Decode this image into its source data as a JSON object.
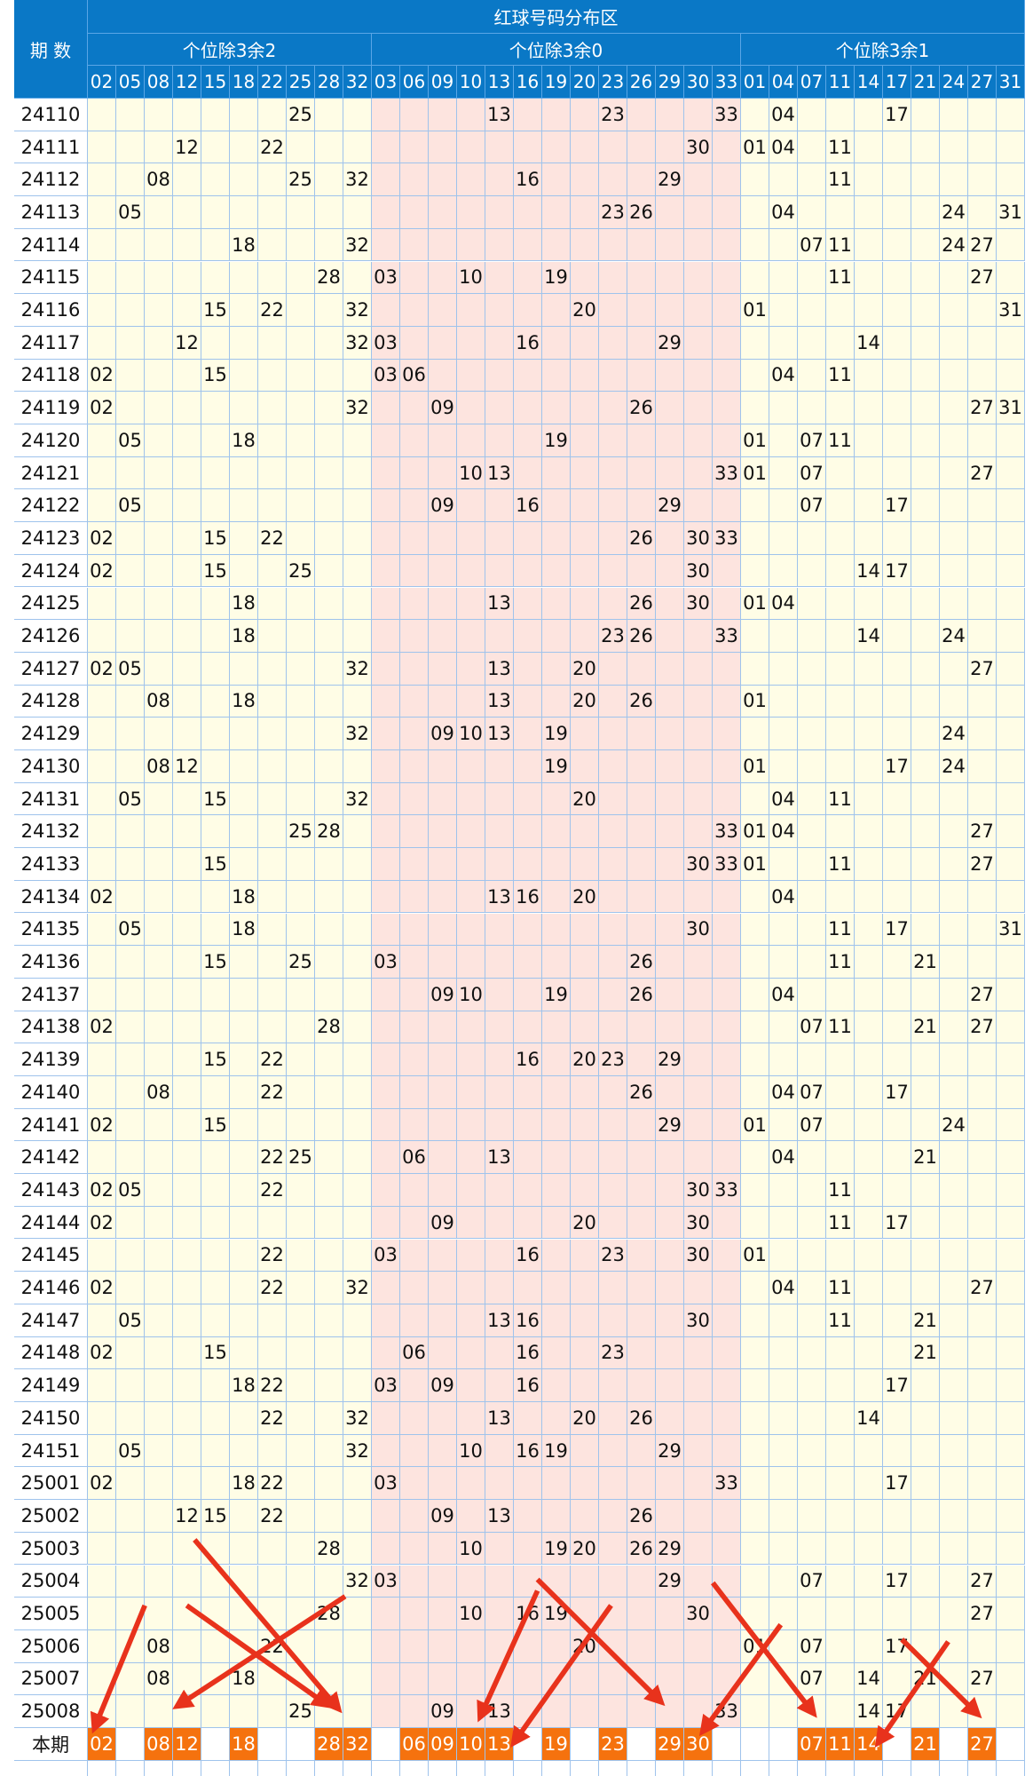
{
  "header": {
    "title": "红球号码分布区",
    "period_label": "期 数",
    "groups": [
      {
        "label": "个位除3余2",
        "numbers": [
          "02",
          "05",
          "08",
          "12",
          "15",
          "18",
          "22",
          "25",
          "28",
          "32"
        ]
      },
      {
        "label": "个位除3余0",
        "numbers": [
          "03",
          "06",
          "09",
          "10",
          "13",
          "16",
          "19",
          "20",
          "23",
          "26",
          "29",
          "30",
          "33"
        ]
      },
      {
        "label": "个位除3余1",
        "numbers": [
          "01",
          "04",
          "07",
          "11",
          "14",
          "17",
          "21",
          "24",
          "27",
          "31"
        ]
      }
    ]
  },
  "rows": [
    {
      "period": "24110",
      "numbers": [
        "25",
        "13",
        "23",
        "33",
        "04",
        "17"
      ]
    },
    {
      "period": "24111",
      "numbers": [
        "12",
        "22",
        "30",
        "01",
        "04",
        "11"
      ]
    },
    {
      "period": "24112",
      "numbers": [
        "08",
        "25",
        "32",
        "16",
        "29",
        "11"
      ]
    },
    {
      "period": "24113",
      "numbers": [
        "05",
        "23",
        "26",
        "04",
        "24",
        "31"
      ]
    },
    {
      "period": "24114",
      "numbers": [
        "18",
        "32",
        "07",
        "11",
        "24",
        "27"
      ]
    },
    {
      "period": "24115",
      "numbers": [
        "28",
        "03",
        "10",
        "19",
        "11",
        "27"
      ]
    },
    {
      "period": "24116",
      "numbers": [
        "15",
        "22",
        "32",
        "20",
        "01",
        "31"
      ]
    },
    {
      "period": "24117",
      "numbers": [
        "12",
        "32",
        "03",
        "16",
        "29",
        "14"
      ]
    },
    {
      "period": "24118",
      "numbers": [
        "02",
        "15",
        "03",
        "06",
        "04",
        "11"
      ]
    },
    {
      "period": "24119",
      "numbers": [
        "02",
        "32",
        "09",
        "26",
        "27",
        "31"
      ]
    },
    {
      "period": "24120",
      "numbers": [
        "05",
        "18",
        "19",
        "01",
        "07",
        "11"
      ]
    },
    {
      "period": "24121",
      "numbers": [
        "10",
        "13",
        "33",
        "01",
        "07",
        "27"
      ]
    },
    {
      "period": "24122",
      "numbers": [
        "05",
        "09",
        "16",
        "29",
        "07",
        "17"
      ]
    },
    {
      "period": "24123",
      "numbers": [
        "02",
        "15",
        "22",
        "26",
        "30",
        "33"
      ]
    },
    {
      "period": "24124",
      "numbers": [
        "02",
        "15",
        "25",
        "30",
        "14",
        "17"
      ]
    },
    {
      "period": "24125",
      "numbers": [
        "18",
        "13",
        "26",
        "30",
        "01",
        "04"
      ]
    },
    {
      "period": "24126",
      "numbers": [
        "18",
        "23",
        "26",
        "33",
        "14",
        "24"
      ]
    },
    {
      "period": "24127",
      "numbers": [
        "02",
        "05",
        "32",
        "13",
        "20",
        "27"
      ]
    },
    {
      "period": "24128",
      "numbers": [
        "08",
        "18",
        "13",
        "20",
        "26",
        "01"
      ]
    },
    {
      "period": "24129",
      "numbers": [
        "32",
        "09",
        "10",
        "13",
        "19",
        "24"
      ]
    },
    {
      "period": "24130",
      "numbers": [
        "08",
        "12",
        "19",
        "01",
        "17",
        "24"
      ]
    },
    {
      "period": "24131",
      "numbers": [
        "05",
        "15",
        "32",
        "20",
        "04",
        "11"
      ]
    },
    {
      "period": "24132",
      "numbers": [
        "25",
        "28",
        "33",
        "01",
        "04",
        "27"
      ]
    },
    {
      "period": "24133",
      "numbers": [
        "15",
        "30",
        "33",
        "01",
        "11",
        "27"
      ]
    },
    {
      "period": "24134",
      "numbers": [
        "02",
        "18",
        "13",
        "16",
        "20",
        "04"
      ]
    },
    {
      "period": "24135",
      "numbers": [
        "05",
        "18",
        "30",
        "11",
        "17",
        "31"
      ]
    },
    {
      "period": "24136",
      "numbers": [
        "15",
        "25",
        "03",
        "26",
        "11",
        "21"
      ]
    },
    {
      "period": "24137",
      "numbers": [
        "09",
        "10",
        "19",
        "26",
        "04",
        "27"
      ]
    },
    {
      "period": "24138",
      "numbers": [
        "02",
        "28",
        "07",
        "11",
        "21",
        "27"
      ]
    },
    {
      "period": "24139",
      "numbers": [
        "15",
        "22",
        "16",
        "20",
        "23",
        "29"
      ]
    },
    {
      "period": "24140",
      "numbers": [
        "08",
        "22",
        "26",
        "04",
        "07",
        "17"
      ]
    },
    {
      "period": "24141",
      "numbers": [
        "02",
        "15",
        "29",
        "01",
        "07",
        "24"
      ]
    },
    {
      "period": "24142",
      "numbers": [
        "22",
        "25",
        "06",
        "13",
        "04",
        "21"
      ]
    },
    {
      "period": "24143",
      "numbers": [
        "02",
        "05",
        "22",
        "30",
        "33",
        "11"
      ]
    },
    {
      "period": "24144",
      "numbers": [
        "02",
        "09",
        "20",
        "30",
        "11",
        "17"
      ]
    },
    {
      "period": "24145",
      "numbers": [
        "22",
        "03",
        "16",
        "23",
        "30",
        "01"
      ]
    },
    {
      "period": "24146",
      "numbers": [
        "02",
        "22",
        "32",
        "04",
        "11",
        "27"
      ]
    },
    {
      "period": "24147",
      "numbers": [
        "05",
        "13",
        "16",
        "30",
        "11",
        "21"
      ]
    },
    {
      "period": "24148",
      "numbers": [
        "02",
        "15",
        "06",
        "16",
        "23",
        "21"
      ]
    },
    {
      "period": "24149",
      "numbers": [
        "18",
        "22",
        "03",
        "09",
        "16",
        "17"
      ]
    },
    {
      "period": "24150",
      "numbers": [
        "22",
        "32",
        "13",
        "20",
        "26",
        "14"
      ]
    },
    {
      "period": "24151",
      "numbers": [
        "05",
        "32",
        "10",
        "16",
        "19",
        "29"
      ]
    },
    {
      "period": "25001",
      "numbers": [
        "02",
        "18",
        "22",
        "03",
        "33",
        "17"
      ]
    },
    {
      "period": "25002",
      "numbers": [
        "12",
        "15",
        "22",
        "09",
        "13",
        "26"
      ]
    },
    {
      "period": "25003",
      "numbers": [
        "28",
        "10",
        "19",
        "20",
        "26",
        "29"
      ]
    },
    {
      "period": "25004",
      "numbers": [
        "32",
        "03",
        "29",
        "07",
        "17",
        "27"
      ]
    },
    {
      "period": "25005",
      "numbers": [
        "28",
        "10",
        "16",
        "19",
        "30",
        "27"
      ]
    },
    {
      "period": "25006",
      "numbers": [
        "08",
        "22",
        "20",
        "01",
        "07",
        "17"
      ]
    },
    {
      "period": "25007",
      "numbers": [
        "08",
        "18",
        "07",
        "14",
        "21",
        "27"
      ]
    },
    {
      "period": "25008",
      "numbers": [
        "25",
        "09",
        "13",
        "33",
        "14",
        "17"
      ]
    }
  ],
  "current": {
    "label": "本期",
    "numbers": [
      "02",
      "08",
      "12",
      "18",
      "28",
      "32",
      "06",
      "09",
      "10",
      "13",
      "19",
      "23",
      "29",
      "30",
      "07",
      "11",
      "14",
      "21",
      "27"
    ]
  }
}
